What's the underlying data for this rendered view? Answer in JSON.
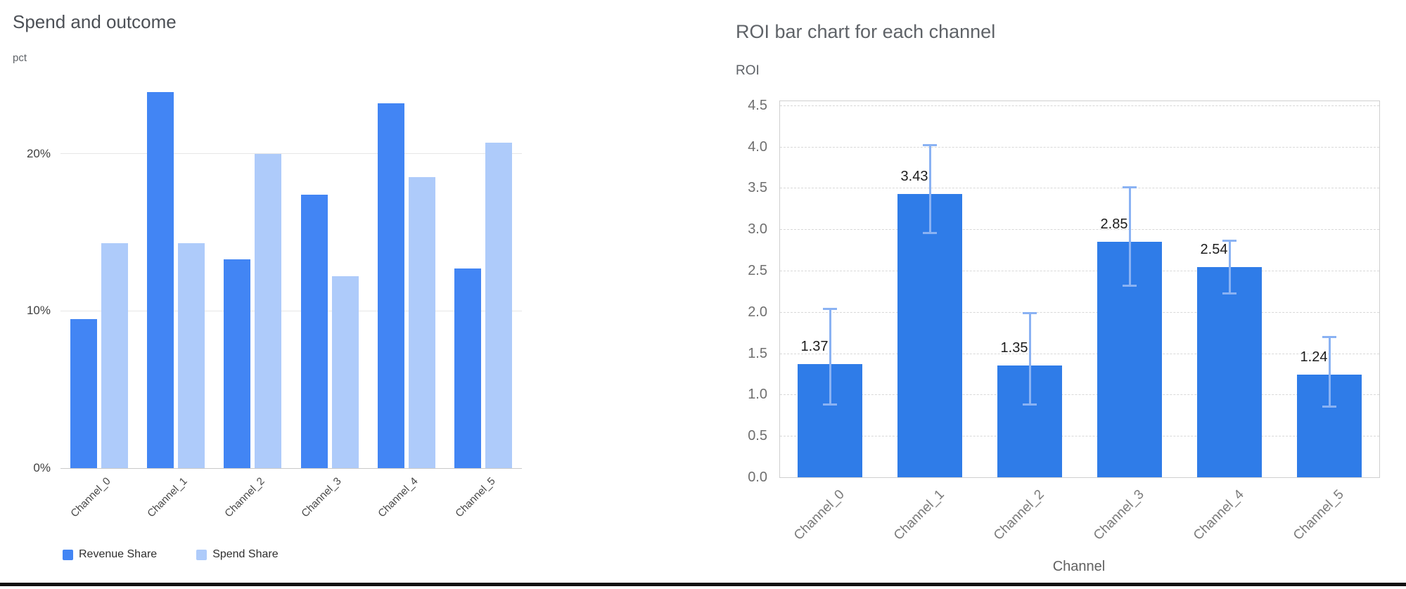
{
  "chart_data": [
    {
      "type": "bar",
      "title": "Spend and outcome",
      "ylabel": "pct",
      "xlabel": "",
      "categories": [
        "Channel_0",
        "Channel_1",
        "Channel_2",
        "Channel_3",
        "Channel_4",
        "Channel_5"
      ],
      "series": [
        {
          "name": "Revenue Share",
          "color": "#4285f4",
          "values": [
            9.5,
            23.9,
            13.3,
            17.4,
            23.2,
            12.7
          ]
        },
        {
          "name": "Spend Share",
          "color": "#aecbfa",
          "values": [
            14.3,
            14.3,
            20.0,
            12.2,
            18.5,
            20.7
          ]
        }
      ],
      "yticks": [
        {
          "value": 0,
          "label": "0%"
        },
        {
          "value": 10,
          "label": "10%"
        },
        {
          "value": 20,
          "label": "20%"
        }
      ],
      "ylim": [
        0,
        24.5
      ],
      "grid": "solid",
      "legend_position": "bottom"
    },
    {
      "type": "bar",
      "title": "ROI bar chart for each channel",
      "ylabel": "ROI",
      "xlabel": "Channel",
      "categories": [
        "Channel_0",
        "Channel_1",
        "Channel_2",
        "Channel_3",
        "Channel_4",
        "Channel_5"
      ],
      "values": [
        1.37,
        3.43,
        1.35,
        2.85,
        2.54,
        1.24
      ],
      "value_labels": [
        "1.37",
        "3.43",
        "1.35",
        "2.85",
        "2.54",
        "1.24"
      ],
      "error_low": [
        0.49,
        0.48,
        0.47,
        0.54,
        0.32,
        0.39
      ],
      "error_high": [
        0.67,
        0.59,
        0.64,
        0.66,
        0.33,
        0.46
      ],
      "bar_color": "#2f7ce8",
      "error_color": "#8ab2f3",
      "yticks": [
        {
          "value": 0,
          "label": "0.0"
        },
        {
          "value": 0.5,
          "label": "0.5"
        },
        {
          "value": 1,
          "label": "1.0"
        },
        {
          "value": 1.5,
          "label": "1.5"
        },
        {
          "value": 2,
          "label": "2.0"
        },
        {
          "value": 2.5,
          "label": "2.5"
        },
        {
          "value": 3,
          "label": "3.0"
        },
        {
          "value": 3.5,
          "label": "3.5"
        },
        {
          "value": 4,
          "label": "4.0"
        },
        {
          "value": 4.5,
          "label": "4.5"
        }
      ],
      "ylim": [
        0,
        4.55
      ],
      "grid": "dashed",
      "legend_position": "none"
    }
  ]
}
